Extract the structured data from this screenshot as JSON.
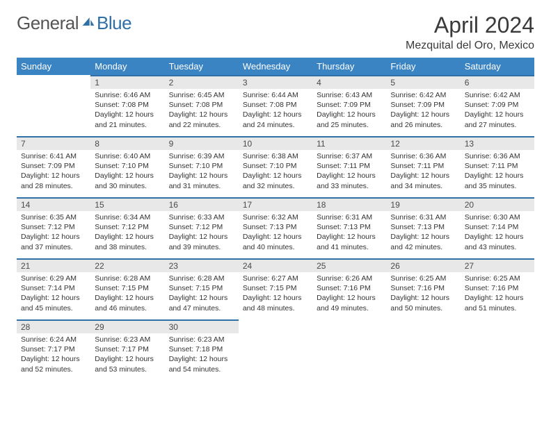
{
  "brand": {
    "general": "General",
    "blue": "Blue"
  },
  "title": "April 2024",
  "location": "Mezquital del Oro, Mexico",
  "colors": {
    "header_bg": "#3b84c4",
    "accent": "#2f6fa8",
    "daynum_bg": "#e8e8e8"
  },
  "weekdays": [
    "Sunday",
    "Monday",
    "Tuesday",
    "Wednesday",
    "Thursday",
    "Friday",
    "Saturday"
  ],
  "first_weekday_index": 1,
  "days_in_month": 30,
  "days": {
    "1": {
      "sunrise": "6:46 AM",
      "sunset": "7:08 PM",
      "daylight": "12 hours and 21 minutes."
    },
    "2": {
      "sunrise": "6:45 AM",
      "sunset": "7:08 PM",
      "daylight": "12 hours and 22 minutes."
    },
    "3": {
      "sunrise": "6:44 AM",
      "sunset": "7:08 PM",
      "daylight": "12 hours and 24 minutes."
    },
    "4": {
      "sunrise": "6:43 AM",
      "sunset": "7:09 PM",
      "daylight": "12 hours and 25 minutes."
    },
    "5": {
      "sunrise": "6:42 AM",
      "sunset": "7:09 PM",
      "daylight": "12 hours and 26 minutes."
    },
    "6": {
      "sunrise": "6:42 AM",
      "sunset": "7:09 PM",
      "daylight": "12 hours and 27 minutes."
    },
    "7": {
      "sunrise": "6:41 AM",
      "sunset": "7:09 PM",
      "daylight": "12 hours and 28 minutes."
    },
    "8": {
      "sunrise": "6:40 AM",
      "sunset": "7:10 PM",
      "daylight": "12 hours and 30 minutes."
    },
    "9": {
      "sunrise": "6:39 AM",
      "sunset": "7:10 PM",
      "daylight": "12 hours and 31 minutes."
    },
    "10": {
      "sunrise": "6:38 AM",
      "sunset": "7:10 PM",
      "daylight": "12 hours and 32 minutes."
    },
    "11": {
      "sunrise": "6:37 AM",
      "sunset": "7:11 PM",
      "daylight": "12 hours and 33 minutes."
    },
    "12": {
      "sunrise": "6:36 AM",
      "sunset": "7:11 PM",
      "daylight": "12 hours and 34 minutes."
    },
    "13": {
      "sunrise": "6:36 AM",
      "sunset": "7:11 PM",
      "daylight": "12 hours and 35 minutes."
    },
    "14": {
      "sunrise": "6:35 AM",
      "sunset": "7:12 PM",
      "daylight": "12 hours and 37 minutes."
    },
    "15": {
      "sunrise": "6:34 AM",
      "sunset": "7:12 PM",
      "daylight": "12 hours and 38 minutes."
    },
    "16": {
      "sunrise": "6:33 AM",
      "sunset": "7:12 PM",
      "daylight": "12 hours and 39 minutes."
    },
    "17": {
      "sunrise": "6:32 AM",
      "sunset": "7:13 PM",
      "daylight": "12 hours and 40 minutes."
    },
    "18": {
      "sunrise": "6:31 AM",
      "sunset": "7:13 PM",
      "daylight": "12 hours and 41 minutes."
    },
    "19": {
      "sunrise": "6:31 AM",
      "sunset": "7:13 PM",
      "daylight": "12 hours and 42 minutes."
    },
    "20": {
      "sunrise": "6:30 AM",
      "sunset": "7:14 PM",
      "daylight": "12 hours and 43 minutes."
    },
    "21": {
      "sunrise": "6:29 AM",
      "sunset": "7:14 PM",
      "daylight": "12 hours and 45 minutes."
    },
    "22": {
      "sunrise": "6:28 AM",
      "sunset": "7:15 PM",
      "daylight": "12 hours and 46 minutes."
    },
    "23": {
      "sunrise": "6:28 AM",
      "sunset": "7:15 PM",
      "daylight": "12 hours and 47 minutes."
    },
    "24": {
      "sunrise": "6:27 AM",
      "sunset": "7:15 PM",
      "daylight": "12 hours and 48 minutes."
    },
    "25": {
      "sunrise": "6:26 AM",
      "sunset": "7:16 PM",
      "daylight": "12 hours and 49 minutes."
    },
    "26": {
      "sunrise": "6:25 AM",
      "sunset": "7:16 PM",
      "daylight": "12 hours and 50 minutes."
    },
    "27": {
      "sunrise": "6:25 AM",
      "sunset": "7:16 PM",
      "daylight": "12 hours and 51 minutes."
    },
    "28": {
      "sunrise": "6:24 AM",
      "sunset": "7:17 PM",
      "daylight": "12 hours and 52 minutes."
    },
    "29": {
      "sunrise": "6:23 AM",
      "sunset": "7:17 PM",
      "daylight": "12 hours and 53 minutes."
    },
    "30": {
      "sunrise": "6:23 AM",
      "sunset": "7:18 PM",
      "daylight": "12 hours and 54 minutes."
    }
  },
  "labels": {
    "sunrise": "Sunrise:",
    "sunset": "Sunset:",
    "daylight": "Daylight:"
  }
}
